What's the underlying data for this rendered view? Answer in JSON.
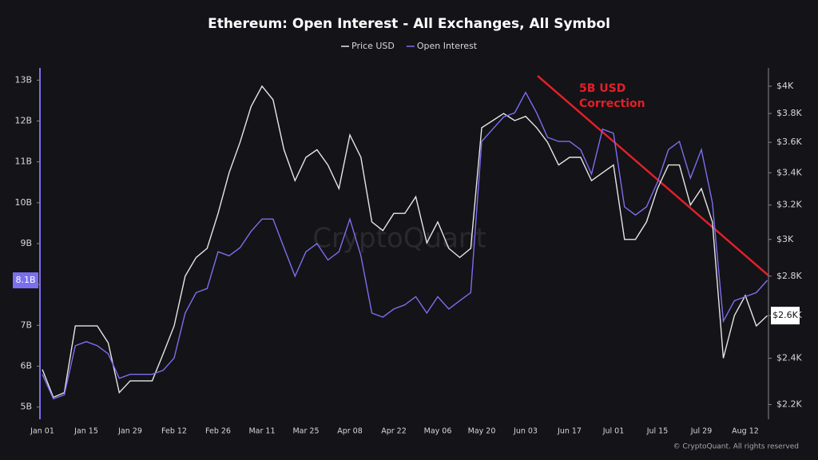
{
  "chart_data": {
    "type": "line",
    "title": "Ethereum: Open Interest - All Exchanges, All Symbol",
    "categories": [
      "Jan 01",
      null,
      null,
      null,
      "Jan 15",
      null,
      null,
      null,
      "Jan 29",
      null,
      null,
      null,
      "Feb 12",
      null,
      null,
      null,
      "Feb 26",
      null,
      null,
      null,
      "Mar 11",
      null,
      null,
      null,
      "Mar 25",
      null,
      null,
      null,
      "Apr 08",
      null,
      null,
      null,
      "Apr 22",
      null,
      null,
      null,
      "May 06",
      null,
      null,
      null,
      "May 20",
      null,
      null,
      null,
      "Jun 03",
      null,
      null,
      null,
      "Jun 17",
      null,
      null,
      null,
      "Jul 01",
      null,
      null,
      null,
      "Jul 15",
      null,
      null,
      null,
      "Jul 29",
      null,
      null,
      null,
      "Aug 12",
      null,
      null
    ],
    "series": [
      {
        "name": "Price USD",
        "color": "#e6e6e6",
        "axis": "y2",
        "values": [
          2350,
          2230,
          2250,
          2550,
          2550,
          2550,
          2470,
          2250,
          2300,
          2300,
          2300,
          2420,
          2550,
          2800,
          2900,
          2950,
          3150,
          3400,
          3600,
          3850,
          4000,
          3900,
          3550,
          3350,
          3500,
          3550,
          3450,
          3300,
          3650,
          3500,
          3100,
          3050,
          3150,
          3150,
          3250,
          2980,
          3100,
          2950,
          2900,
          2950,
          3700,
          3750,
          3800,
          3750,
          3780,
          3700,
          3600,
          3450,
          3500,
          3500,
          3350,
          3400,
          3450,
          3000,
          3000,
          3100,
          3300,
          3450,
          3450,
          3200,
          3300,
          3100,
          2400,
          2600,
          2700,
          2550,
          2600
        ]
      },
      {
        "name": "Open Interest",
        "color": "#7b6ff0",
        "values": [
          5.8,
          5.2,
          5.3,
          6.5,
          6.6,
          6.5,
          6.3,
          5.7,
          5.8,
          5.8,
          5.8,
          5.9,
          6.2,
          7.3,
          7.8,
          7.9,
          8.8,
          8.7,
          8.9,
          9.3,
          9.6,
          9.6,
          8.9,
          8.2,
          8.8,
          9.0,
          8.6,
          8.8,
          9.6,
          8.7,
          7.3,
          7.2,
          7.4,
          7.5,
          7.7,
          7.3,
          7.7,
          7.4,
          7.6,
          7.8,
          11.5,
          11.8,
          12.1,
          12.2,
          12.7,
          12.2,
          11.6,
          11.5,
          11.5,
          11.3,
          10.7,
          11.8,
          11.7,
          9.9,
          9.7,
          9.9,
          10.5,
          11.3,
          11.5,
          10.6,
          11.3,
          10.0,
          7.1,
          7.6,
          7.7,
          7.8,
          8.1
        ]
      }
    ],
    "ylim": [
      4.7,
      13.3
    ],
    "yticks": [
      {
        "value": 5,
        "label": "5B"
      },
      {
        "value": 6,
        "label": "6B"
      },
      {
        "value": 7,
        "label": "7B"
      },
      {
        "value": 8,
        "label": "8B"
      },
      {
        "value": 9,
        "label": "9B"
      },
      {
        "value": 10,
        "label": "10B"
      },
      {
        "value": 11,
        "label": "11B"
      },
      {
        "value": 12,
        "label": "12B"
      },
      {
        "value": 13,
        "label": "13B"
      }
    ],
    "y2lim": [
      2140,
      4140
    ],
    "y2_log": true,
    "y2ticks": [
      {
        "value": 2200,
        "label": "$2.2K"
      },
      {
        "value": 2400,
        "label": "$2.4K"
      },
      {
        "value": 2600,
        "label": "$2.6K"
      },
      {
        "value": 2800,
        "label": "$2.8K"
      },
      {
        "value": 3000,
        "label": "$3K"
      },
      {
        "value": 3200,
        "label": "$3.2K"
      },
      {
        "value": 3400,
        "label": "$3.4K"
      },
      {
        "value": 3600,
        "label": "$3.6K"
      },
      {
        "value": 3800,
        "label": "$3.8K"
      },
      {
        "value": 4000,
        "label": "$4K"
      }
    ],
    "last_value_labels": {
      "left": "8.1B",
      "right": "$2.6K"
    },
    "annotation": [
      "5B USD",
      "Correction"
    ],
    "watermark": "CryptoQuant",
    "footer": "© CryptoQuant. All rights reserved"
  }
}
